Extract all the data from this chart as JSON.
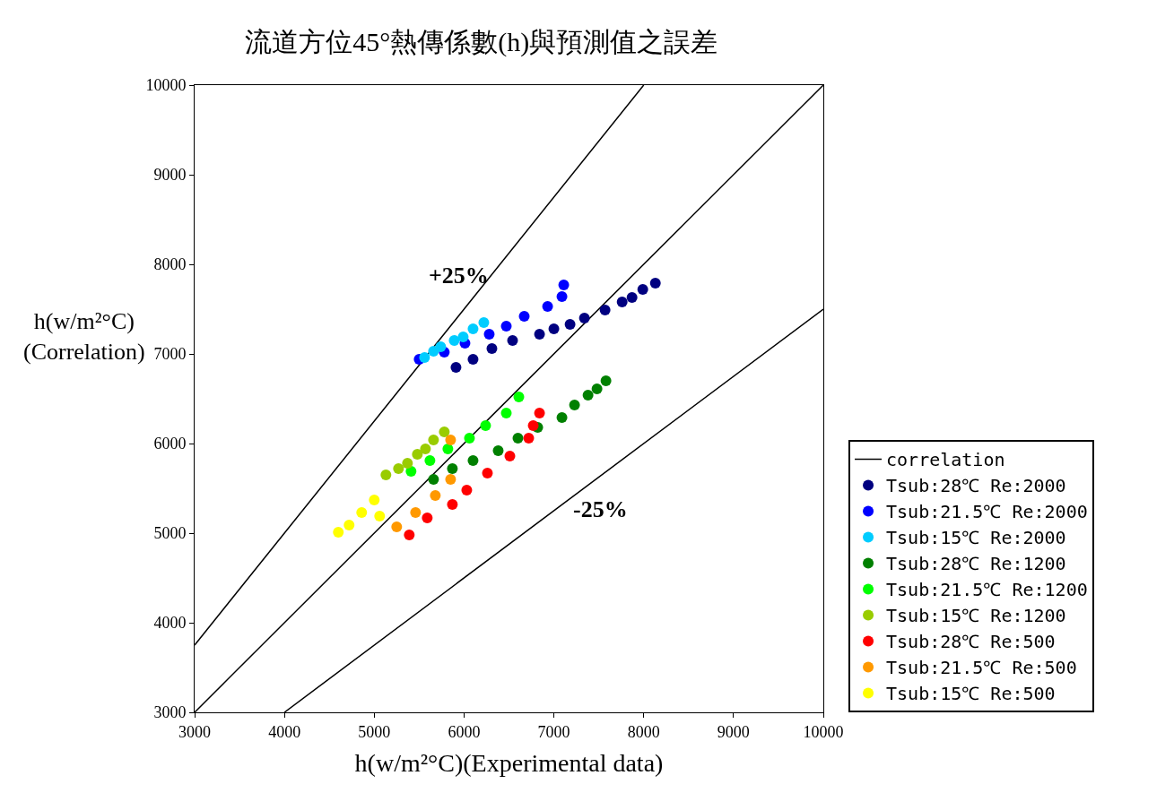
{
  "chart_data": {
    "type": "scatter",
    "title": "流道方位45°熱傳係數(h)與預測值之誤差",
    "xlabel": "h(w/m²°C)(Experimental data)",
    "ylabel": "h(w/m²°C)\n(Correlation)",
    "xlim": [
      3000,
      10000
    ],
    "ylim": [
      3000,
      10000
    ],
    "xticks": [
      3000,
      4000,
      5000,
      6000,
      7000,
      8000,
      9000,
      10000
    ],
    "yticks": [
      3000,
      4000,
      5000,
      6000,
      7000,
      8000,
      9000,
      10000
    ],
    "legend": "right",
    "marker": "circle",
    "annotations": [
      "+25%",
      "-25%"
    ],
    "series": [
      {
        "type": "line",
        "name": "correlation",
        "color": "#000000",
        "marker": "none",
        "x": [
          3000,
          10000
        ],
        "values": [
          3000,
          10000
        ]
      },
      {
        "type": "line",
        "color": "#000000",
        "marker": "none",
        "x": [
          3000,
          8000
        ],
        "values": [
          3750,
          10000
        ]
      },
      {
        "type": "line",
        "color": "#000000",
        "marker": "none",
        "x": [
          4000,
          10000
        ],
        "values": [
          3000,
          7500
        ]
      },
      {
        "name": "Tsub:28℃ Re:2000",
        "color": "#000080",
        "x": [
          5910,
          6100,
          6310,
          6540,
          6840,
          7000,
          7180,
          7340,
          7570,
          7760,
          7870,
          7990,
          8130
        ],
        "values": [
          6850,
          6940,
          7060,
          7150,
          7220,
          7280,
          7330,
          7400,
          7490,
          7580,
          7630,
          7720,
          7790
        ]
      },
      {
        "name": "Tsub:21.5℃ Re:2000",
        "color": "#0000ff",
        "x": [
          5500,
          5780,
          6010,
          6280,
          6470,
          6670,
          6930,
          7090,
          7110
        ],
        "values": [
          6940,
          7020,
          7120,
          7220,
          7310,
          7420,
          7530,
          7640,
          7770
        ]
      },
      {
        "name": "Tsub:15℃ Re:2000",
        "color": "#00ccff",
        "x": [
          5560,
          5660,
          5740,
          5890,
          5990,
          6100,
          6220
        ],
        "values": [
          6960,
          7030,
          7080,
          7150,
          7190,
          7280,
          7350
        ]
      },
      {
        "name": "Tsub:28℃ Re:1200",
        "color": "#008000",
        "x": [
          5660,
          5870,
          6100,
          6380,
          6600,
          6820,
          7090,
          7230,
          7380,
          7480,
          7580
        ],
        "values": [
          5600,
          5720,
          5810,
          5920,
          6060,
          6180,
          6290,
          6430,
          6540,
          6610,
          6700
        ]
      },
      {
        "name": "Tsub:21.5℃ Re:1200",
        "color": "#00ff00",
        "x": [
          5410,
          5620,
          5820,
          6060,
          6240,
          6470,
          6610
        ],
        "values": [
          5690,
          5810,
          5940,
          6060,
          6200,
          6340,
          6520
        ]
      },
      {
        "name": "Tsub:15℃ Re:1200",
        "color": "#99cc00",
        "x": [
          5130,
          5270,
          5370,
          5480,
          5570,
          5660,
          5780
        ],
        "values": [
          5650,
          5720,
          5780,
          5880,
          5940,
          6040,
          6130
        ]
      },
      {
        "name": "Tsub:28℃ Re:500",
        "color": "#ff0000",
        "x": [
          5390,
          5590,
          5870,
          6030,
          6260,
          6510,
          6720,
          6770,
          6840
        ],
        "values": [
          4980,
          5170,
          5320,
          5480,
          5670,
          5860,
          6060,
          6200,
          6340
        ]
      },
      {
        "name": "Tsub:21.5℃ Re:500",
        "color": "#ff9900",
        "x": [
          5250,
          5460,
          5680,
          5850,
          5850
        ],
        "values": [
          5070,
          5230,
          5420,
          5600,
          6040
        ]
      },
      {
        "name": "Tsub:15℃ Re:500",
        "color": "#ffff00",
        "x": [
          4600,
          4720,
          4860,
          5000,
          5060
        ],
        "values": [
          5010,
          5090,
          5230,
          5370,
          5190
        ]
      }
    ]
  }
}
